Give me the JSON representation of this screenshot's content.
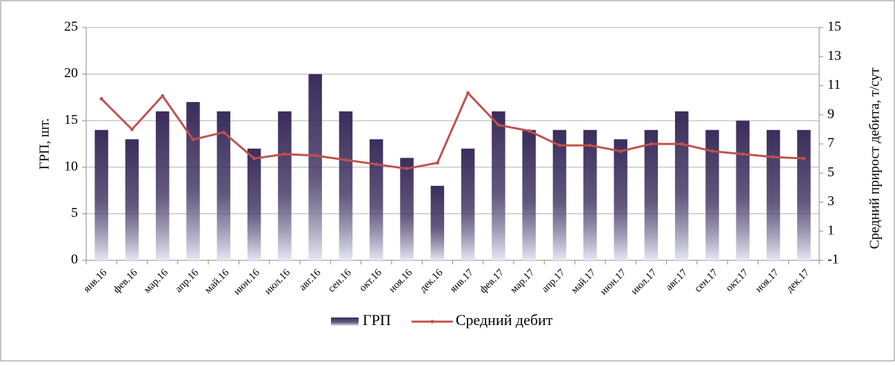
{
  "chart_data": {
    "type": "bar_line",
    "y_label": "ГРП, шт.",
    "y2_label": "Средний прирост дебита, т/сут",
    "categories": [
      "янв.16",
      "фев.16",
      "мар.16",
      "апр.16",
      "май.16",
      "июн.16",
      "июл.16",
      "авг.16",
      "сен.16",
      "окт.16",
      "ноя.16",
      "дек.16",
      "янв.17",
      "фев.17",
      "мар.17",
      "апр.17",
      "май.17",
      "июн.17",
      "июл.17",
      "авг.17",
      "сен.17",
      "окт.17",
      "ноя.17",
      "дек.17"
    ],
    "series": [
      {
        "name": "ГРП",
        "type": "bar",
        "color": "#3b2d5c",
        "values": [
          14,
          13,
          16,
          17,
          16,
          12,
          16,
          20,
          16,
          13,
          11,
          8,
          12,
          16,
          14,
          14,
          14,
          13,
          14,
          16,
          14,
          15,
          14,
          14
        ]
      },
      {
        "name": "Средний дебит",
        "type": "line",
        "axis": "y2",
        "color": "#c0504d",
        "values": [
          10.1,
          8.0,
          10.3,
          7.3,
          7.8,
          6.0,
          6.3,
          6.2,
          5.9,
          5.6,
          5.3,
          5.7,
          10.5,
          8.3,
          7.9,
          6.9,
          6.9,
          6.5,
          7.0,
          7.0,
          6.5,
          6.3,
          6.1,
          6.0
        ]
      }
    ],
    "ylim": [
      0,
      25
    ],
    "yticks": [
      0,
      5,
      10,
      15,
      20,
      25
    ],
    "y2lim": [
      -1,
      15
    ],
    "y2ticks": [
      -1,
      1,
      3,
      5,
      7,
      9,
      11,
      13,
      15
    ],
    "grid": true,
    "legend": "bottom"
  }
}
